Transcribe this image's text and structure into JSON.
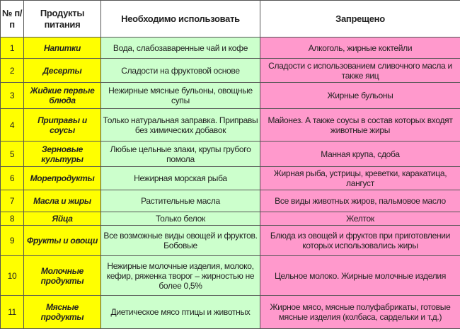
{
  "header": {
    "num": "№ п/п",
    "product": "Продукты питания",
    "allowed": "Необходимо использовать",
    "forbidden": "Запрещено"
  },
  "colors": {
    "product": "#ffff00",
    "allowed": "#ccffcc",
    "forbidden": "#ff99cc"
  },
  "rows": [
    {
      "num": "1",
      "product": "Напитки",
      "allowed": "Вода, слабозаваренные чай и кофе",
      "forbidden": "Алкоголь, жирные коктейли"
    },
    {
      "num": "2",
      "product": "Десерты",
      "allowed": "Сладости на фруктовой основе",
      "forbidden": "Сладости с использованием сливочного масла и также яиц"
    },
    {
      "num": "3",
      "product": "Жидкие первые блюда",
      "allowed": "Нежирные мясные бульоны, овощные супы",
      "forbidden": "Жирные бульоны"
    },
    {
      "num": "4",
      "product": "Приправы и соусы",
      "allowed": "Только натуральная заправка. Приправы без химических добавок",
      "forbidden": "Майонез. А также соусы в состав которых входят животные жиры"
    },
    {
      "num": "5",
      "product": "Зерновые культуры",
      "allowed": "Любые цельные злаки, крупы грубого помола",
      "forbidden": "Манная крупа, сдоба"
    },
    {
      "num": "6",
      "product": "Морепродукты",
      "allowed": "Нежирная морская рыба",
      "forbidden": "Жирная рыба, устрицы, креветки, каракатица, лангуст"
    },
    {
      "num": "7",
      "product": "Масла и жиры",
      "allowed": "Растительные масла",
      "forbidden": "Все виды животных жиров, пальмовое масло"
    },
    {
      "num": "8",
      "product": "Яйца",
      "allowed": "Только белок",
      "forbidden": "Желток"
    },
    {
      "num": "9",
      "product": "Фрукты и овощи",
      "allowed": "Все возможные виды овощей и фруктов. Бобовые",
      "forbidden": "Блюда из овощей и фруктов при приготовлении которых использовались жиры"
    },
    {
      "num": "10",
      "product": "Молочные продукты",
      "allowed": "Нежирные молочные изделия, молоко, кефир, ряженка творог – жирностью не более 0,5%",
      "forbidden": "Цельное молоко. Жирные молочные изделия"
    },
    {
      "num": "11",
      "product": "Мясные продукты",
      "allowed": "Диетическое мясо птицы и животных",
      "forbidden": "Жирное мясо, мясные полуфабрикаты, готовые мясные изделия (колбаса, сардельки и т.д.)"
    }
  ]
}
